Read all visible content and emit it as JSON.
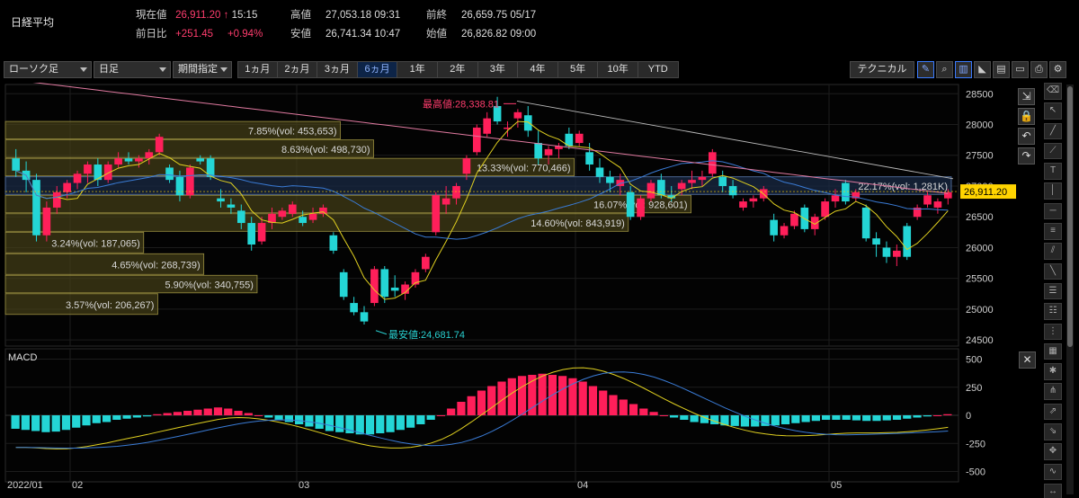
{
  "header": {
    "title": "日経平均",
    "current": {
      "label": "現在値",
      "value": "26,911.20",
      "arrow": "↑",
      "time": "15:15"
    },
    "high": {
      "label": "高値",
      "value": "27,053.18",
      "time": "09:31"
    },
    "prev_close": {
      "label": "前終",
      "value": "26,659.75",
      "date": "05/17"
    },
    "change": {
      "label": "前日比",
      "value": "+251.45",
      "pct": "+0.94%"
    },
    "low": {
      "label": "安値",
      "value": "26,741.34",
      "time": "10:47"
    },
    "open": {
      "label": "始値",
      "value": "26,826.82",
      "time": "09:00"
    }
  },
  "toolbar": {
    "chart_type": "ローソク足",
    "interval": "日足",
    "period": "期間指定",
    "ranges": [
      "1ヵ月",
      "2ヵ月",
      "3ヵ月",
      "6ヵ月",
      "1年",
      "2年",
      "3年",
      "4年",
      "5年",
      "10年",
      "YTD"
    ],
    "active_range": "6ヵ月",
    "technical": "テクニカル",
    "icons": [
      "pencil-icon",
      "zoom-icon",
      "volume-bars-icon",
      "area-chart-icon",
      "save-icon",
      "folder-icon",
      "print-icon",
      "settings-icon"
    ]
  },
  "colors": {
    "up": "#ff1f5a",
    "down": "#24d6d6",
    "ma_short": "#e0d020",
    "ma_mid": "#3a7bd5",
    "ma_long": "#e07aa0",
    "profile": "#4a4418"
  },
  "chart_data": [
    {
      "type": "candlestick",
      "name": "price",
      "y_ticks": [
        24500,
        25000,
        25500,
        26000,
        26500,
        27000,
        27500,
        28000,
        28500
      ],
      "x_ticks": [
        "2022/01",
        "02",
        "03",
        "04",
        "05"
      ],
      "current_price": "26,911.20",
      "annotations": {
        "high": "最高値:28,338.81",
        "low": "最安値:24,681.74"
      },
      "volume_profile": [
        {
          "low": 27750,
          "high": 28050,
          "label": "7.85%(vol: 453,653)",
          "pct": 7.85
        },
        {
          "low": 27450,
          "high": 27750,
          "label": "8.63%(vol: 498,730)",
          "pct": 8.63
        },
        {
          "low": 27150,
          "high": 27450,
          "label": "13.33%(vol: 770,466)",
          "pct": 13.33
        },
        {
          "low": 26850,
          "high": 27150,
          "label": "22.17%(vol: 1,281K)",
          "pct": 22.17
        },
        {
          "low": 26550,
          "high": 26850,
          "label": "16.07%(vol: 928,601)",
          "pct": 16.07
        },
        {
          "low": 26250,
          "high": 26550,
          "label": "14.60%(vol: 843,919)",
          "pct": 14.6
        },
        {
          "low": 25900,
          "high": 26250,
          "label": "3.24%(vol: 187,065)",
          "pct": 3.24
        },
        {
          "low": 25550,
          "high": 25900,
          "label": "4.65%(vol: 268,739)",
          "pct": 4.65
        },
        {
          "low": 25250,
          "high": 25550,
          "label": "5.90%(vol: 340,755)",
          "pct": 5.9
        },
        {
          "low": 24900,
          "high": 25250,
          "label": "3.57%(vol: 206,267)",
          "pct": 3.57
        }
      ],
      "candles": [
        [
          27450,
          27600,
          27150,
          27250
        ],
        [
          27250,
          27400,
          26900,
          27100
        ],
        [
          27100,
          27200,
          26100,
          26200
        ],
        [
          26200,
          26750,
          26100,
          26650
        ],
        [
          26650,
          27000,
          26550,
          26900
        ],
        [
          26900,
          27100,
          26800,
          27050
        ],
        [
          27050,
          27250,
          26950,
          27200
        ],
        [
          27200,
          27400,
          27050,
          27350
        ],
        [
          27350,
          27450,
          27000,
          27100
        ],
        [
          27100,
          27400,
          27050,
          27350
        ],
        [
          27350,
          27550,
          27300,
          27450
        ],
        [
          27450,
          27550,
          27350,
          27400
        ],
        [
          27400,
          27500,
          27300,
          27450
        ],
        [
          27450,
          27600,
          27350,
          27550
        ],
        [
          27550,
          27850,
          27500,
          27800
        ],
        [
          27300,
          27350,
          27050,
          27100
        ],
        [
          27150,
          27250,
          26750,
          26850
        ],
        [
          26850,
          27350,
          26800,
          27300
        ],
        [
          27450,
          27500,
          27350,
          27400
        ],
        [
          27450,
          27500,
          27100,
          27150
        ],
        [
          26800,
          26950,
          26650,
          26750
        ],
        [
          26700,
          26800,
          26550,
          26650
        ],
        [
          26600,
          26700,
          26300,
          26400
        ],
        [
          26400,
          26500,
          25950,
          26050
        ],
        [
          26100,
          26500,
          26050,
          26400
        ],
        [
          26400,
          26650,
          26300,
          26550
        ],
        [
          26500,
          26650,
          26450,
          26600
        ],
        [
          26550,
          26750,
          26500,
          26700
        ],
        [
          26500,
          26600,
          26350,
          26400
        ],
        [
          26450,
          26650,
          26400,
          26550
        ],
        [
          26550,
          26700,
          26500,
          26650
        ],
        [
          26200,
          26250,
          25900,
          25950
        ],
        [
          25600,
          25650,
          25150,
          25200
        ],
        [
          25100,
          25200,
          24900,
          24950
        ],
        [
          24950,
          25050,
          24750,
          24800
        ],
        [
          25100,
          25700,
          25050,
          25650
        ],
        [
          25650,
          25700,
          25100,
          25200
        ],
        [
          25350,
          25550,
          25200,
          25300
        ],
        [
          25250,
          25450,
          25150,
          25400
        ],
        [
          25400,
          25650,
          25350,
          25600
        ],
        [
          25650,
          25900,
          25600,
          25850
        ],
        [
          26250,
          26900,
          26200,
          26850
        ],
        [
          26700,
          27000,
          26550,
          26800
        ],
        [
          26800,
          27050,
          26700,
          27000
        ],
        [
          27200,
          27500,
          27100,
          27450
        ],
        [
          27550,
          28000,
          27500,
          27950
        ],
        [
          27850,
          28200,
          27800,
          28100
        ],
        [
          28300,
          28450,
          28000,
          28050
        ],
        [
          27950,
          28050,
          27800,
          27950
        ],
        [
          28100,
          28250,
          27950,
          28200
        ],
        [
          28150,
          28300,
          27800,
          27900
        ],
        [
          27700,
          27900,
          27350,
          27450
        ],
        [
          27500,
          27650,
          27350,
          27600
        ],
        [
          27600,
          27700,
          27450,
          27650
        ],
        [
          27850,
          27950,
          27600,
          27650
        ],
        [
          27700,
          27900,
          27650,
          27850
        ],
        [
          27550,
          27700,
          27250,
          27350
        ],
        [
          27300,
          27450,
          27050,
          27150
        ],
        [
          27150,
          27250,
          26900,
          27050
        ],
        [
          27000,
          27200,
          26850,
          27100
        ],
        [
          26900,
          27000,
          26450,
          26500
        ],
        [
          26500,
          26850,
          26450,
          26800
        ],
        [
          26800,
          27100,
          26750,
          27050
        ],
        [
          27100,
          27200,
          26800,
          26850
        ],
        [
          26850,
          27000,
          26750,
          26800
        ],
        [
          26950,
          27100,
          26850,
          27050
        ],
        [
          27050,
          27250,
          26950,
          27100
        ],
        [
          27100,
          27250,
          27000,
          27150
        ],
        [
          27200,
          27600,
          27150,
          27550
        ],
        [
          27150,
          27250,
          26900,
          27000
        ],
        [
          27000,
          27100,
          26800,
          26850
        ],
        [
          26650,
          26800,
          26600,
          26750
        ],
        [
          26750,
          26850,
          26650,
          26800
        ],
        [
          26800,
          27000,
          26750,
          26950
        ],
        [
          26450,
          26550,
          26100,
          26200
        ],
        [
          26200,
          26400,
          26150,
          26350
        ],
        [
          26350,
          26600,
          26300,
          26550
        ],
        [
          26650,
          26700,
          26250,
          26300
        ],
        [
          26300,
          26550,
          26200,
          26500
        ],
        [
          26500,
          26800,
          26450,
          26750
        ],
        [
          26750,
          26950,
          26650,
          26850
        ],
        [
          27050,
          27100,
          26700,
          26750
        ],
        [
          26800,
          26950,
          26750,
          26900
        ],
        [
          26650,
          26700,
          26100,
          26150
        ],
        [
          26150,
          26250,
          25850,
          26050
        ],
        [
          26000,
          26100,
          25750,
          25850
        ],
        [
          25850,
          26050,
          25700,
          25950
        ],
        [
          26350,
          26400,
          25800,
          25850
        ],
        [
          26500,
          26700,
          26450,
          26650
        ],
        [
          26700,
          26900,
          26650,
          26850
        ],
        [
          26650,
          26800,
          26550,
          26750
        ],
        [
          26800,
          26950,
          26700,
          26900
        ]
      ]
    },
    {
      "type": "histogram+lines",
      "name": "MACD",
      "y_ticks": [
        -500,
        -250,
        0,
        250,
        500
      ],
      "histogram": [
        -120,
        -130,
        -140,
        -150,
        -145,
        -130,
        -110,
        -90,
        -70,
        -60,
        -40,
        -30,
        -20,
        -10,
        10,
        20,
        30,
        40,
        50,
        60,
        70,
        60,
        40,
        20,
        0,
        -20,
        -40,
        -60,
        -80,
        -100,
        -120,
        -140,
        -150,
        -160,
        -170,
        -170,
        -160,
        -150,
        -130,
        -110,
        -80,
        -40,
        0,
        60,
        120,
        170,
        220,
        260,
        300,
        330,
        350,
        360,
        370,
        360,
        350,
        330,
        300,
        260,
        220,
        180,
        140,
        100,
        60,
        30,
        0,
        -20,
        -40,
        -60,
        -70,
        -80,
        -90,
        -95,
        -100,
        -100,
        -95,
        -90,
        -80,
        -70,
        -60,
        -50,
        -40,
        -40,
        -40,
        -45,
        -50,
        -50,
        -45,
        -40,
        -30,
        -20,
        -10,
        0,
        10
      ]
    }
  ]
}
